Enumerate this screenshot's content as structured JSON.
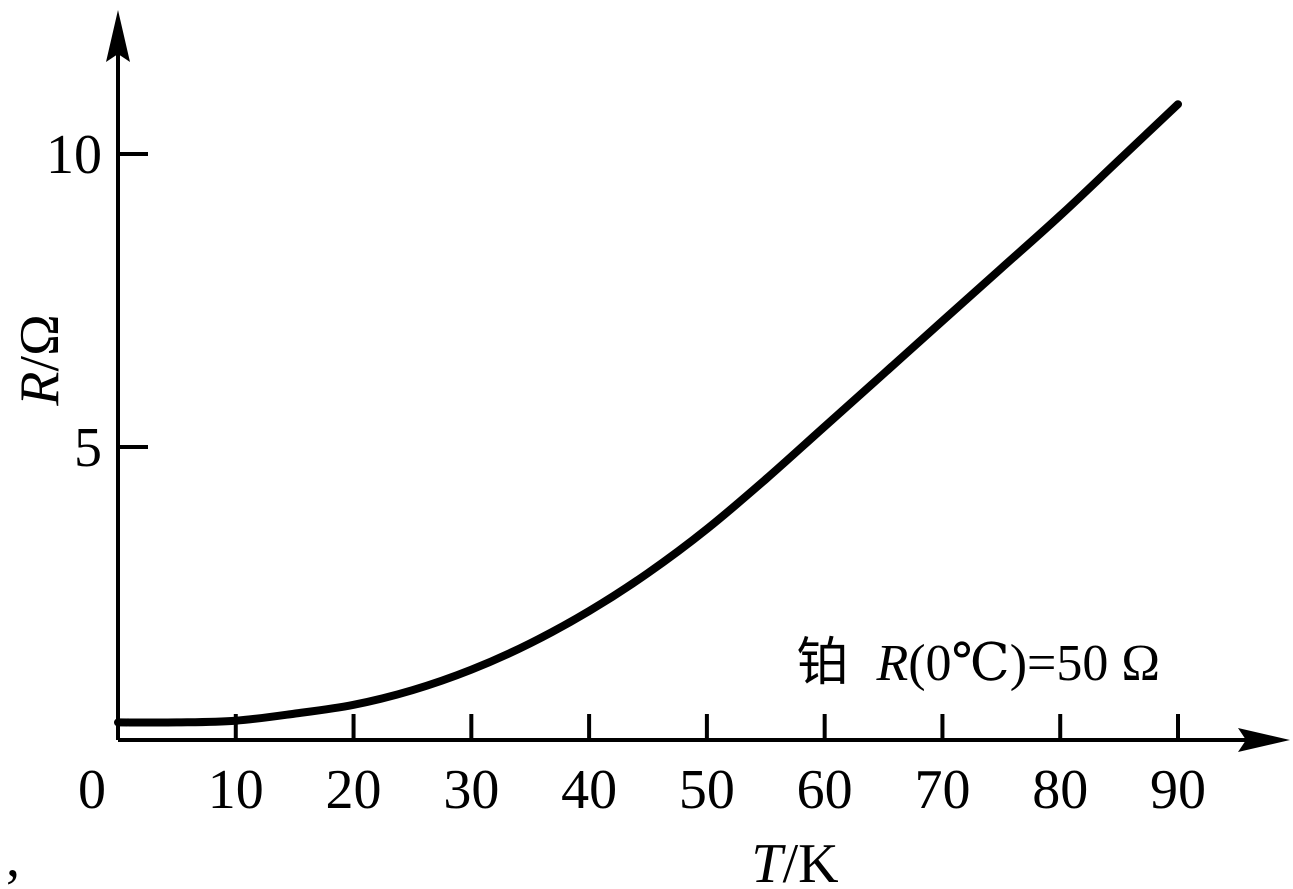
{
  "chart_data": {
    "type": "line",
    "x_axis": {
      "label_var": "T",
      "label_unit": "/K",
      "range": [
        0,
        90
      ],
      "ticks": [
        0,
        10,
        20,
        30,
        40,
        50,
        60,
        70,
        80,
        90
      ],
      "tick_labels": [
        "0",
        "10",
        "20",
        "30",
        "40",
        "50",
        "60",
        "70",
        "80",
        "90"
      ]
    },
    "y_axis": {
      "label_var": "R",
      "label_unit": "/Ω",
      "range": [
        0,
        11
      ],
      "labeled_ticks": [
        5,
        10
      ],
      "tick_labels": [
        "5",
        "10"
      ]
    },
    "series": [
      {
        "x": [
          0,
          5,
          10,
          15,
          20,
          25,
          30,
          35,
          40,
          45,
          50,
          55,
          60,
          65,
          70,
          75,
          80,
          85,
          90
        ],
        "y": [
          0.3,
          0.3,
          0.33,
          0.45,
          0.6,
          0.85,
          1.2,
          1.65,
          2.2,
          2.85,
          3.6,
          4.45,
          5.35,
          6.25,
          7.15,
          8.05,
          8.95,
          9.9,
          10.85
        ]
      }
    ],
    "annotation": {
      "material": "铂",
      "var": "R",
      "condition": "(0℃)=50 Ω"
    },
    "grid": false,
    "legend": "none"
  },
  "stray_mark": ","
}
